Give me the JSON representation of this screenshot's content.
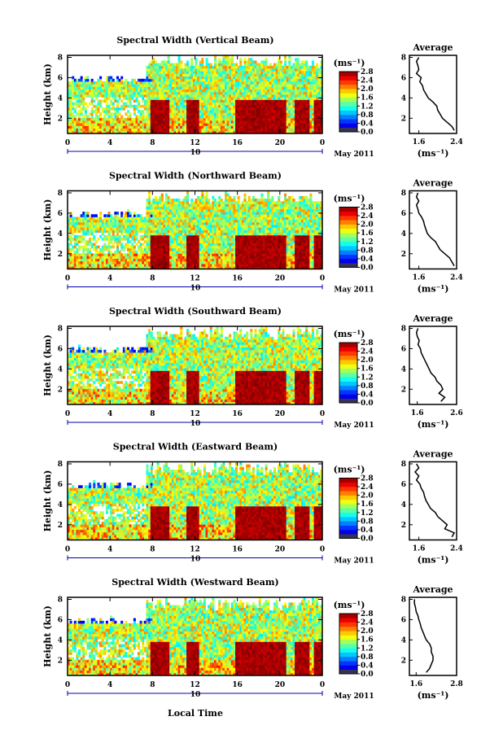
{
  "figure": {
    "date_label": "May 2011",
    "day_label": "10",
    "xlabel_bottom": "Local Time"
  },
  "chart_data": [
    {
      "type": "heatmap",
      "title": "Spectral Width (Vertical Beam)",
      "ylabel": "Height (km)",
      "x_ticks": [
        "0",
        "4",
        "8",
        "12",
        "16",
        "20",
        "0"
      ],
      "y_ticks": [
        "2",
        "4",
        "6",
        "8"
      ],
      "xlim": [
        0,
        24
      ],
      "ylim": [
        0.5,
        8.2
      ],
      "colorbar": {
        "unit": "(ms⁻¹)",
        "ticks": [
          "0.0",
          "0.4",
          "0.8",
          "1.2",
          "1.6",
          "2.0",
          "2.4",
          "2.8"
        ],
        "range": [
          0.0,
          2.8
        ]
      },
      "profile": {
        "title": "Average",
        "xlabel": "(ms⁻¹)",
        "x_ticks": [
          "1.6",
          "2.4"
        ],
        "xlim": [
          1.4,
          2.4
        ],
        "y_ticks": [
          "2",
          "4",
          "6",
          "8"
        ],
        "ylim": [
          0.5,
          8.2
        ],
        "heights": [
          0.8,
          1.2,
          1.6,
          2.0,
          2.4,
          2.8,
          3.2,
          3.6,
          4.0,
          4.4,
          4.8,
          5.2,
          5.6,
          6.0,
          6.4,
          6.8,
          7.2,
          7.6,
          8.0
        ],
        "values": [
          2.35,
          2.3,
          2.2,
          2.1,
          2.05,
          2.0,
          1.98,
          1.9,
          1.8,
          1.75,
          1.7,
          1.68,
          1.62,
          1.65,
          1.55,
          1.6,
          1.58,
          1.55,
          1.6
        ]
      }
    },
    {
      "type": "heatmap",
      "title": "Spectral Width (Northward Beam)",
      "ylabel": "Height (km)",
      "x_ticks": [
        "0",
        "4",
        "8",
        "12",
        "16",
        "20",
        "0"
      ],
      "y_ticks": [
        "2",
        "4",
        "6",
        "8"
      ],
      "xlim": [
        0,
        24
      ],
      "ylim": [
        0.5,
        8.2
      ],
      "colorbar": {
        "unit": "(ms⁻¹)",
        "ticks": [
          "0.0",
          "0.4",
          "0.8",
          "1.2",
          "1.6",
          "2.0",
          "2.4",
          "2.8"
        ],
        "range": [
          0.0,
          2.8
        ]
      },
      "profile": {
        "title": "Average",
        "xlabel": "(ms⁻¹)",
        "x_ticks": [
          "1.6",
          "2.4"
        ],
        "xlim": [
          1.4,
          2.4
        ],
        "y_ticks": [
          "2",
          "4",
          "6",
          "8"
        ],
        "ylim": [
          0.5,
          8.2
        ],
        "heights": [
          0.8,
          1.2,
          1.6,
          2.0,
          2.4,
          2.8,
          3.2,
          3.6,
          4.0,
          4.4,
          4.8,
          5.2,
          5.6,
          6.0,
          6.4,
          6.8,
          7.2,
          7.6,
          8.0
        ],
        "values": [
          2.35,
          2.3,
          2.25,
          2.15,
          2.05,
          2.0,
          1.95,
          1.85,
          1.78,
          1.75,
          1.72,
          1.7,
          1.66,
          1.6,
          1.58,
          1.55,
          1.6,
          1.55,
          1.58
        ]
      }
    },
    {
      "type": "heatmap",
      "title": "Spectral Width (Southward Beam)",
      "ylabel": "Height (km)",
      "x_ticks": [
        "0",
        "4",
        "8",
        "12",
        "16",
        "20",
        "0"
      ],
      "y_ticks": [
        "2",
        "4",
        "6",
        "8"
      ],
      "xlim": [
        0,
        24
      ],
      "ylim": [
        0.5,
        8.2
      ],
      "colorbar": {
        "unit": "(ms⁻¹)",
        "ticks": [
          "0.0",
          "0.4",
          "0.8",
          "1.2",
          "1.6",
          "2.0",
          "2.4",
          "2.8"
        ],
        "range": [
          0.0,
          2.8
        ]
      },
      "profile": {
        "title": "Average",
        "xlabel": "(ms⁻¹)",
        "x_ticks": [
          "1.6",
          "2.6"
        ],
        "xlim": [
          1.4,
          2.6
        ],
        "y_ticks": [
          "2",
          "4",
          "6",
          "8"
        ],
        "ylim": [
          0.5,
          8.2
        ],
        "heights": [
          0.8,
          1.2,
          1.6,
          2.0,
          2.4,
          2.8,
          3.2,
          3.6,
          4.0,
          4.4,
          4.8,
          5.2,
          5.6,
          6.0,
          6.4,
          6.8,
          7.2,
          7.6,
          8.0
        ],
        "values": [
          2.2,
          2.3,
          2.15,
          2.25,
          2.2,
          2.1,
          2.05,
          1.95,
          1.9,
          1.85,
          1.8,
          1.75,
          1.7,
          1.68,
          1.62,
          1.65,
          1.6,
          1.58,
          1.62
        ]
      }
    },
    {
      "type": "heatmap",
      "title": "Spectral Width (Eastward Beam)",
      "ylabel": "Height (km)",
      "x_ticks": [
        "0",
        "4",
        "8",
        "12",
        "16",
        "20",
        "0"
      ],
      "y_ticks": [
        "2",
        "4",
        "6",
        "8"
      ],
      "xlim": [
        0,
        24
      ],
      "ylim": [
        0.5,
        8.2
      ],
      "colorbar": {
        "unit": "(ms⁻¹)",
        "ticks": [
          "0.0",
          "0.4",
          "0.8",
          "1.2",
          "1.6",
          "2.0",
          "2.4",
          "2.8"
        ],
        "range": [
          0.0,
          2.8
        ]
      },
      "profile": {
        "title": "Average",
        "xlabel": "(ms⁻¹)",
        "x_ticks": [
          "1.6",
          "2.4"
        ],
        "xlim": [
          1.4,
          2.4
        ],
        "y_ticks": [
          "2",
          "4",
          "6",
          "8"
        ],
        "ylim": [
          0.5,
          8.2
        ],
        "heights": [
          0.8,
          1.2,
          1.6,
          2.0,
          2.4,
          2.8,
          3.2,
          3.6,
          4.0,
          4.4,
          4.8,
          5.2,
          5.6,
          6.0,
          6.4,
          6.8,
          7.2,
          7.6,
          8.0
        ],
        "values": [
          2.3,
          2.35,
          2.15,
          2.2,
          2.1,
          2.0,
          1.95,
          1.85,
          1.8,
          1.75,
          1.72,
          1.7,
          1.65,
          1.62,
          1.55,
          1.6,
          1.52,
          1.6,
          1.55
        ]
      }
    },
    {
      "type": "heatmap",
      "title": "Spectral Width (Westward Beam)",
      "ylabel": "Height (km)",
      "x_ticks": [
        "0",
        "4",
        "8",
        "12",
        "16",
        "20",
        "0"
      ],
      "y_ticks": [
        "2",
        "4",
        "6",
        "8"
      ],
      "xlim": [
        0,
        24
      ],
      "ylim": [
        0.5,
        8.2
      ],
      "colorbar": {
        "unit": "(ms⁻¹)",
        "ticks": [
          "0.0",
          "0.4",
          "0.8",
          "1.2",
          "1.6",
          "2.0",
          "2.4",
          "2.8"
        ],
        "range": [
          0.0,
          2.8
        ]
      },
      "profile": {
        "title": "Average",
        "xlabel": "(ms⁻¹)",
        "x_ticks": [
          "1.6",
          "2.8"
        ],
        "xlim": [
          1.4,
          2.8
        ],
        "y_ticks": [
          "2",
          "4",
          "6",
          "8"
        ],
        "ylim": [
          0.5,
          8.2
        ],
        "heights": [
          0.8,
          1.2,
          1.6,
          2.0,
          2.4,
          2.8,
          3.2,
          3.6,
          4.0,
          4.4,
          4.8,
          5.2,
          5.6,
          6.0,
          6.4,
          6.8,
          7.2,
          7.6,
          8.0
        ],
        "values": [
          1.9,
          2.0,
          2.05,
          2.1,
          2.1,
          2.05,
          2.05,
          2.0,
          1.9,
          1.85,
          1.8,
          1.75,
          1.72,
          1.68,
          1.65,
          1.6,
          1.58,
          1.55,
          1.55
        ]
      }
    }
  ]
}
